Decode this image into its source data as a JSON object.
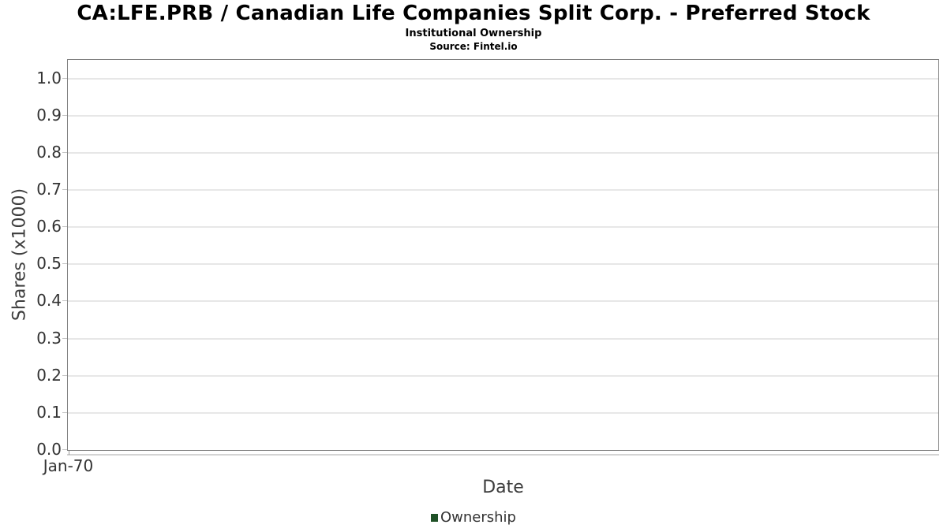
{
  "header": {
    "title": "CA:LFE.PRB / Canadian Life Companies Split Corp. - Preferred Stock",
    "subtitle": "Institutional Ownership",
    "source": "Source: Fintel.io"
  },
  "chart_data": {
    "type": "line",
    "title": "CA:LFE.PRB / Canadian Life Companies Split Corp. - Preferred Stock",
    "subtitle": "Institutional Ownership",
    "source": "Source: Fintel.io",
    "xlabel": "Date",
    "ylabel": "Shares (x1000)",
    "x_tick_labels": [
      "Jan-70"
    ],
    "y_tick_labels": [
      "0.0",
      "0.1",
      "0.2",
      "0.3",
      "0.4",
      "0.5",
      "0.6",
      "0.7",
      "0.8",
      "0.9",
      "1.0"
    ],
    "y_tick_values": [
      0.0,
      0.1,
      0.2,
      0.3,
      0.4,
      0.5,
      0.6,
      0.7,
      0.8,
      0.9,
      1.0
    ],
    "ylim": [
      0,
      1.05
    ],
    "xlim_labels": [
      "Jan-70"
    ],
    "grid": true,
    "legend_position": "bottom-center",
    "series": [
      {
        "name": "Ownership",
        "color": "#1f5127",
        "x": [],
        "values": []
      }
    ]
  },
  "colors": {
    "plot_border": "#808080",
    "gridline": "#e7e7e7",
    "axis_line": "#d4d4d4",
    "tick_label": "#333333",
    "axis_title": "#3d3d3d",
    "legend_swatch": "#1f5127",
    "background": "#ffffff"
  }
}
